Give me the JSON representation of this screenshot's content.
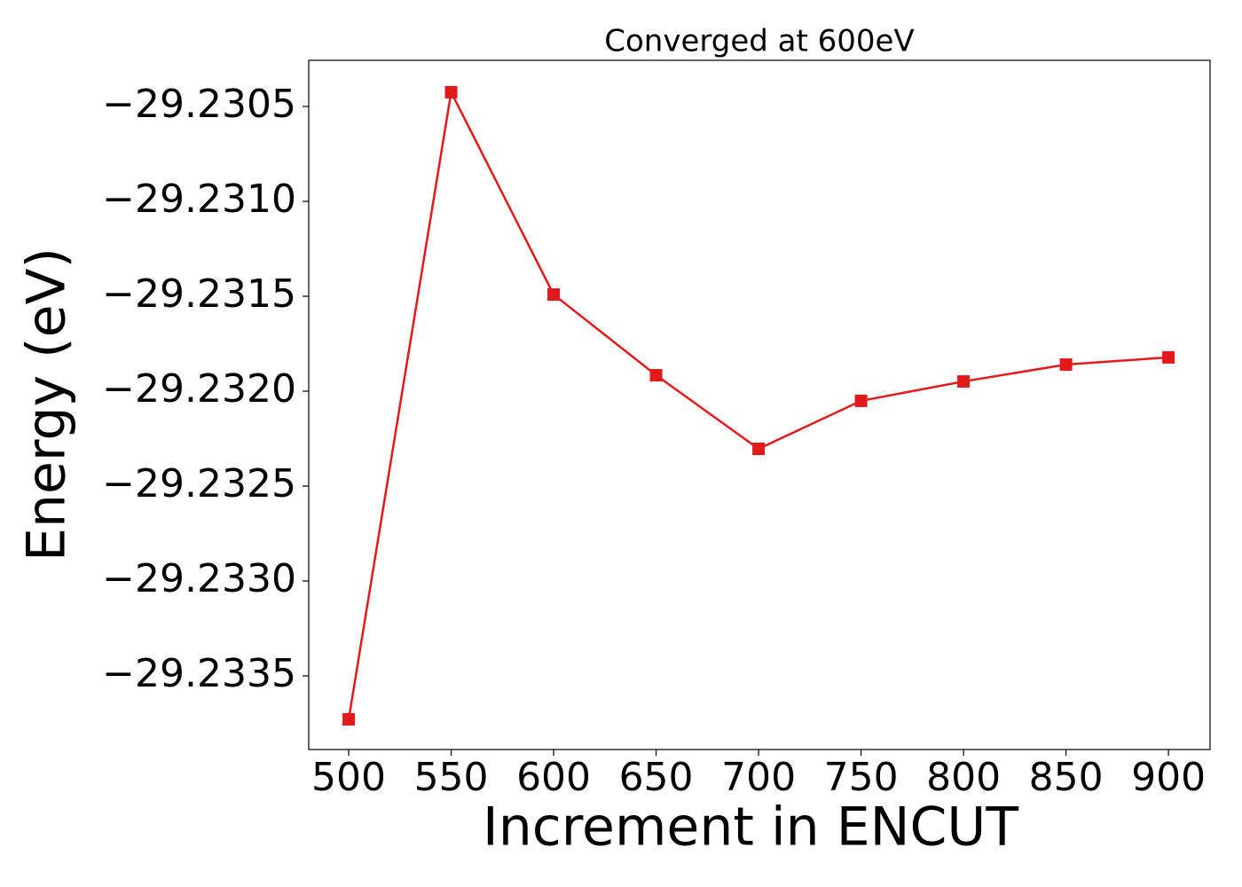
{
  "chart_data": {
    "type": "line",
    "title": "Converged at 600eV",
    "x_label": "Increment in ENCUT",
    "y_label": "Energy (eV)",
    "x": [
      500,
      550,
      600,
      650,
      700,
      750,
      800,
      850,
      900
    ],
    "series": [
      {
        "name": "Energy",
        "color": "#e31a1c",
        "marker": "square",
        "values": [
          -29.233729,
          -29.230425,
          -29.231491,
          -29.231916,
          -29.232304,
          -29.232051,
          -29.231949,
          -29.23186,
          -29.231822
        ]
      }
    ],
    "xlim": [
      480.5,
      920.3
    ],
    "ylim": [
      -29.233888,
      -29.230257
    ],
    "xticks": [
      500,
      550,
      600,
      650,
      700,
      750,
      800,
      850,
      900
    ],
    "yticks": [
      {
        "value": -29.2305,
        "label": "−29.2305"
      },
      {
        "value": -29.231,
        "label": "−29.2310"
      },
      {
        "value": -29.2315,
        "label": "−29.2315"
      },
      {
        "value": -29.232,
        "label": "−29.2320"
      },
      {
        "value": -29.2325,
        "label": "−29.2325"
      },
      {
        "value": -29.233,
        "label": "−29.2330"
      },
      {
        "value": -29.2335,
        "label": "−29.2335"
      }
    ],
    "grid": false
  }
}
